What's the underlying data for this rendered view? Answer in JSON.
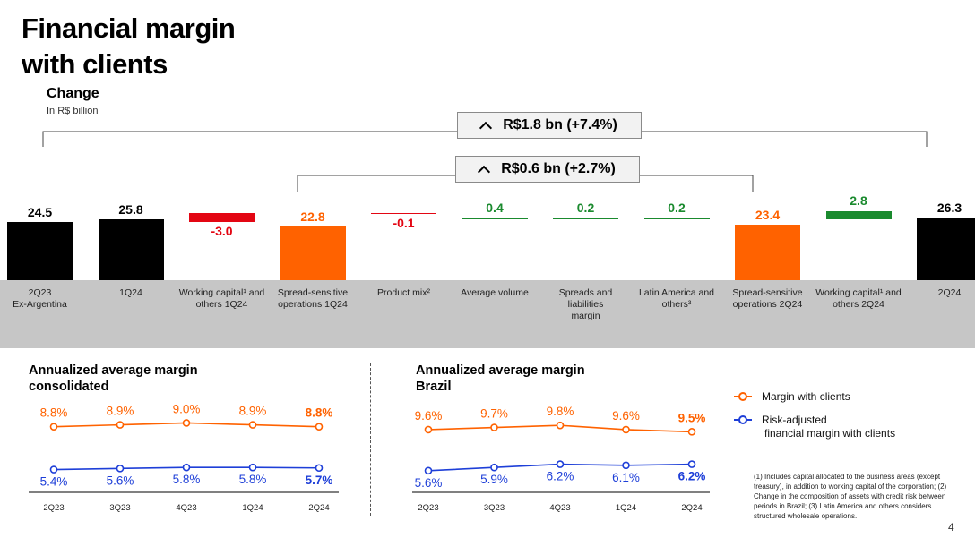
{
  "title_line1": "Financial margin",
  "title_line2": "with clients",
  "change_label": "Change",
  "unit_label": "In R$ billion",
  "badge_total": "R$1.8 bn (+7.4%)",
  "badge_spread": "R$0.6 bn (+2.7%)",
  "colors": {
    "black": "#000000",
    "red": "#e30613",
    "orange": "#ff6200",
    "green": "#1a8a2e",
    "blue": "#1e3fd8",
    "gray_band": "#c6c6c6"
  },
  "chart_data": [
    {
      "type": "bar",
      "subtype": "waterfall",
      "title": "Change",
      "ylabel": "In R$ billion",
      "categories": [
        "2Q23 Ex-Argentina",
        "1Q24",
        "Working capital¹ and others 1Q24",
        "Spread-sensitive operations 1Q24",
        "Product mix²",
        "Average volume",
        "Spreads and liabilities margin",
        "Latin America and others³",
        "Spread-sensitive operations 2Q24",
        "Working capital¹ and others 2Q24",
        "2Q24"
      ],
      "values": [
        24.5,
        25.8,
        -3.0,
        22.8,
        -0.1,
        0.4,
        0.2,
        0.2,
        23.4,
        2.8,
        26.3
      ],
      "labels": [
        "24.5",
        "25.8",
        "-3.0",
        "22.8",
        "-0.1",
        "0.4",
        "0.2",
        "0.2",
        "23.4",
        "2.8",
        "26.3"
      ],
      "cat_lines": [
        [
          "2Q23",
          "Ex-Argentina"
        ],
        [
          "1Q24"
        ],
        [
          "Working capital¹ and",
          "others 1Q24"
        ],
        [
          "Spread-sensitive",
          "operations 1Q24"
        ],
        [
          "Product mix²"
        ],
        [
          "Average volume"
        ],
        [
          "Spreads and liabilities",
          "margin"
        ],
        [
          "Latin America and",
          "others³"
        ],
        [
          "Spread-sensitive",
          "operations 2Q24"
        ],
        [
          "Working capital¹ and",
          "others 2Q24"
        ],
        [
          "2Q24"
        ]
      ],
      "bar_colors": [
        "#000000",
        "#000000",
        "#e30613",
        "#ff6200",
        "#e30613",
        "#1a8a2e",
        "#1a8a2e",
        "#1a8a2e",
        "#ff6200",
        "#1a8a2e",
        "#000000"
      ],
      "label_colors": [
        "#000000",
        "#000000",
        "#e30613",
        "#ff6200",
        "#e30613",
        "#1a8a2e",
        "#1a8a2e",
        "#1a8a2e",
        "#ff6200",
        "#1a8a2e",
        "#000000"
      ]
    },
    {
      "type": "line",
      "title": "Annualized average margin consolidated",
      "categories": [
        "2Q23",
        "3Q23",
        "4Q23",
        "1Q24",
        "2Q24"
      ],
      "series": [
        {
          "name": "Margin with clients",
          "values": [
            8.8,
            8.9,
            9.0,
            8.9,
            8.8
          ],
          "labels": [
            "8.8%",
            "8.9%",
            "9.0%",
            "8.9%",
            "8.8%"
          ],
          "color": "#ff6200"
        },
        {
          "name": "Risk-adjusted financial margin with clients",
          "values": [
            5.4,
            5.6,
            5.8,
            5.8,
            5.7
          ],
          "labels": [
            "5.4%",
            "5.6%",
            "5.8%",
            "5.8%",
            "5.7%"
          ],
          "color": "#1e3fd8"
        }
      ]
    },
    {
      "type": "line",
      "title": "Annualized average margin Brazil",
      "categories": [
        "2Q23",
        "3Q23",
        "4Q23",
        "1Q24",
        "2Q24"
      ],
      "series": [
        {
          "name": "Margin with clients",
          "values": [
            9.6,
            9.7,
            9.8,
            9.6,
            9.5
          ],
          "labels": [
            "9.6%",
            "9.7%",
            "9.8%",
            "9.6%",
            "9.5%"
          ],
          "color": "#ff6200"
        },
        {
          "name": "Risk-adjusted financial margin with clients",
          "values": [
            5.6,
            5.9,
            6.2,
            6.1,
            6.2
          ],
          "labels": [
            "5.6%",
            "5.9%",
            "6.2%",
            "6.1%",
            "6.2%"
          ],
          "color": "#1e3fd8"
        }
      ]
    }
  ],
  "consolidated_title_1": "Annualized average margin",
  "consolidated_title_2": "consolidated",
  "brazil_title_1": "Annualized average margin",
  "brazil_title_2": "Brazil",
  "legend": {
    "margin": "Margin with clients",
    "risk_line1": "Risk-adjusted",
    "risk_line2": "financial margin with clients"
  },
  "footnote": "(1) Includes capital allocated to the business areas (except treasury), in addition to working capital of the corporation; (2) Change in the composition of assets with credit risk between periods in Brazil; (3) Latin America and others considers structured wholesale operations.",
  "page_number": "4"
}
